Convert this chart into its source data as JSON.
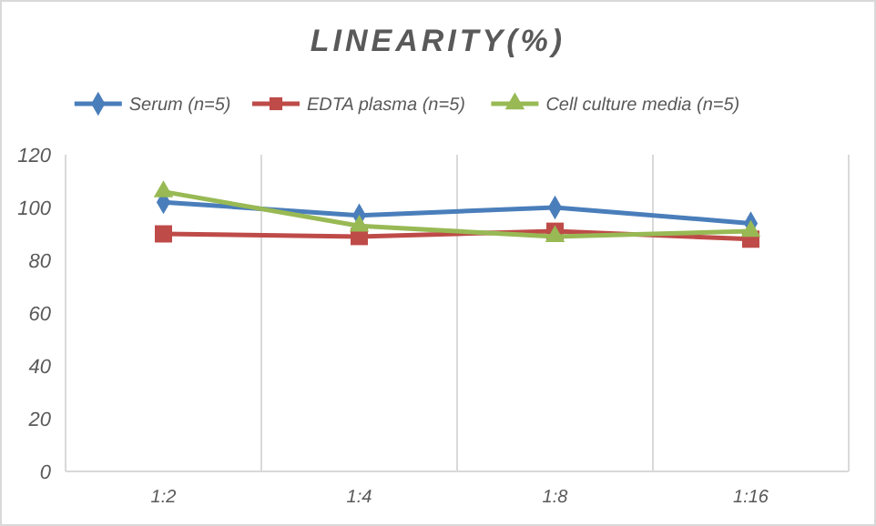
{
  "chart_data": {
    "type": "line",
    "title": "LINEARITY(%)",
    "categories": [
      "1:2",
      "1:4",
      "1:8",
      "1:16"
    ],
    "series": [
      {
        "name": "Serum (n=5)",
        "color": "#4a7ebb",
        "values": [
          102,
          97,
          100,
          94
        ],
        "marker": "diamond"
      },
      {
        "name": "EDTA plasma (n=5)",
        "color": "#be4b48",
        "values": [
          90,
          89,
          91,
          88
        ],
        "marker": "square"
      },
      {
        "name": "Cell culture media (n=5)",
        "color": "#98b954",
        "values": [
          106,
          93,
          89,
          91
        ],
        "marker": "triangle"
      }
    ],
    "ylim": [
      0,
      120
    ],
    "yticks": [
      0,
      20,
      40,
      60,
      80,
      100,
      120
    ],
    "grid": "x",
    "legend": "top"
  }
}
